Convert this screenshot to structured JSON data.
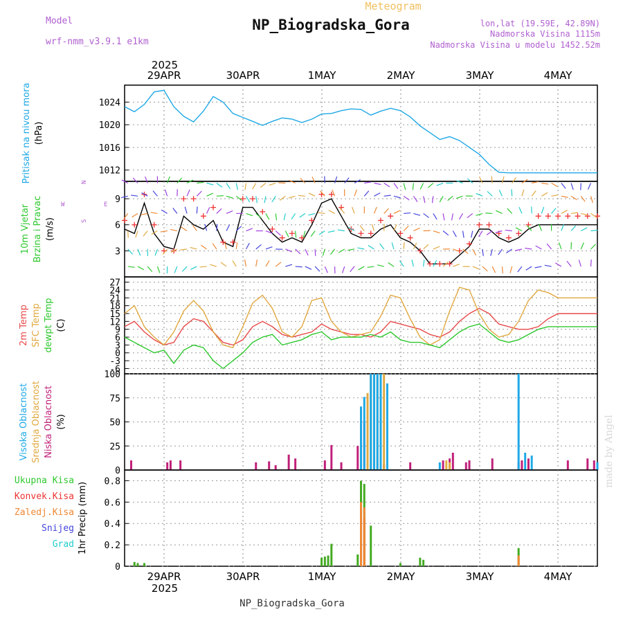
{
  "header": {
    "meteogram_label": "Meteogram",
    "station_title": "NP_Biogradska_Gora",
    "model_label": "Model",
    "model_name": "wrf-nmm_v3.9.1  e1km",
    "lonlat": "lon,lat (19.59E, 42.89N)",
    "elevation": "Nadmorska Visina 1115m",
    "model_elevation": "Nadmorska Visina u modelu 1452.52m"
  },
  "footer": {
    "station": "NP_Biogradska_Gora",
    "credit": "made by Angel"
  },
  "colors": {
    "pressure": "#1ea8e6",
    "t2m": "#e84a4a",
    "tsfc": "#e0a840",
    "dewpt": "#2ec82e",
    "high_cloud": "#1ea8e6",
    "mid_cloud": "#e0a840",
    "low_cloud": "#c0207a",
    "total_precip": "#44aa22",
    "conv_precip": "#ee3333",
    "frozen_precip": "#ee8833",
    "snow": "#4444dd",
    "graupel": "#22cccc",
    "wind_speed": "#000000",
    "gust": "#ee3333"
  },
  "chart_data": [
    {
      "type": "line",
      "panel": "pressure",
      "ylabel_parts": [
        "Pritisak na nivou mora",
        "(hPa)"
      ],
      "xlim": [
        0,
        144
      ],
      "ylim": [
        1010,
        1027
      ],
      "yticks": [
        1012,
        1016,
        1020,
        1024
      ],
      "grid": true,
      "top_tick_year": "2025",
      "top_tick_labels": [
        "29APR",
        "30APR",
        "1MAY",
        "2MAY",
        "3MAY",
        "4MAY"
      ],
      "series": [
        {
          "color": "#1ea8e6",
          "x": [
            0,
            3,
            6,
            9,
            12,
            15,
            18,
            21,
            24,
            27,
            30,
            33,
            36,
            39,
            42,
            45,
            48,
            51,
            54,
            57,
            60,
            63,
            66,
            69,
            72,
            75,
            78,
            81,
            84,
            87,
            90,
            93,
            96,
            99,
            102,
            105,
            108,
            111,
            114,
            117,
            120,
            123,
            126,
            129,
            132,
            135,
            138,
            141,
            144
          ],
          "y": [
            1023.2,
            1022.3,
            1023.6,
            1025.8,
            1026.1,
            1023.2,
            1021.5,
            1020.5,
            1022.4,
            1025.0,
            1024.0,
            1022.0,
            1021.3,
            1020.6,
            1019.9,
            1020.6,
            1021.2,
            1021.0,
            1020.4,
            1021.0,
            1021.9,
            1022.0,
            1022.5,
            1022.8,
            1022.7,
            1021.7,
            1022.4,
            1022.9,
            1022.5,
            1021.4,
            1019.8,
            1018.6,
            1017.4,
            1017.9,
            1017.2,
            1016.0,
            1014.8,
            1013.0,
            1011.6,
            1011.5,
            1011.5,
            1011.5,
            1011.5,
            1011.5,
            1011.5,
            1011.5,
            1011.5,
            1011.5,
            1011.5
          ]
        }
      ]
    },
    {
      "type": "line",
      "panel": "wind",
      "ylabel_parts": [
        "10m Vjetar",
        "Brzina i Pravac",
        "(m/s)"
      ],
      "compass_labels": [
        "W",
        "E",
        "N",
        "S"
      ],
      "xlim": [
        0,
        144
      ],
      "ylim": [
        0,
        11
      ],
      "yticks": [
        3,
        6,
        9
      ],
      "grid": true,
      "series": [
        {
          "name": "speed",
          "color": "#000000",
          "x": [
            0,
            3,
            6,
            9,
            12,
            15,
            18,
            21,
            24,
            27,
            30,
            33,
            36,
            39,
            42,
            45,
            48,
            51,
            54,
            57,
            60,
            63,
            66,
            69,
            72,
            75,
            78,
            81,
            84,
            87,
            90,
            93,
            96,
            99,
            102,
            105,
            108,
            111,
            114,
            117,
            120,
            123,
            126,
            129,
            132,
            135,
            138,
            141,
            144
          ],
          "y": [
            5.5,
            5.0,
            8.5,
            5.0,
            3.5,
            3.2,
            7.0,
            6.0,
            5.5,
            6.5,
            4.0,
            3.5,
            8.0,
            8.0,
            6.5,
            5.0,
            4.0,
            4.5,
            4.0,
            6.0,
            8.5,
            9.0,
            7.0,
            5.0,
            4.5,
            4.5,
            5.5,
            6.0,
            4.5,
            4.0,
            3.0,
            1.5,
            1.5,
            1.5,
            2.5,
            3.5,
            5.5,
            5.5,
            4.5,
            4.0,
            4.5,
            5.5,
            6.0,
            6.0,
            6.0,
            6.0,
            6.0,
            6.0,
            6.0
          ]
        },
        {
          "name": "gust",
          "color": "#ee3333",
          "x": [
            0,
            3,
            6,
            9,
            12,
            15,
            18,
            21,
            24,
            27,
            30,
            33,
            36,
            39,
            42,
            45,
            48,
            51,
            54,
            57,
            60,
            63,
            66,
            69,
            72,
            75,
            78,
            81,
            84,
            87,
            90,
            93,
            96,
            99,
            102,
            105,
            108,
            111,
            114,
            117,
            120,
            123,
            126,
            129,
            132,
            135,
            138,
            141,
            144
          ],
          "y": [
            6.5,
            6.0,
            9.5,
            6.0,
            3.0,
            3.0,
            9.0,
            9.0,
            7.0,
            8.0,
            4.0,
            4.0,
            9.0,
            9.0,
            7.5,
            5.5,
            4.5,
            5.0,
            4.5,
            6.5,
            9.5,
            9.5,
            8.0,
            5.5,
            5.0,
            5.0,
            6.5,
            7.0,
            5.0,
            4.5,
            3.0,
            1.5,
            1.5,
            1.5,
            3.0,
            3.8,
            6.0,
            6.0,
            5.0,
            4.5,
            5.0,
            6.0,
            7.0,
            7.0,
            7.0,
            7.0,
            7.0,
            7.0,
            7.0
          ]
        }
      ]
    },
    {
      "type": "line",
      "panel": "temperature",
      "ylabel_parts": [
        "2m Temp",
        "SFC Temp",
        "dewpt Temp",
        "(C)"
      ],
      "xlim": [
        0,
        144
      ],
      "ylim": [
        -8,
        29
      ],
      "yticks": [
        -6,
        -3,
        0,
        3,
        6,
        9,
        12,
        15,
        18,
        21,
        24,
        27
      ],
      "grid": true,
      "series": [
        {
          "name": "2m Temp",
          "color": "#e84a4a",
          "x": [
            0,
            3,
            6,
            9,
            12,
            15,
            18,
            21,
            24,
            27,
            30,
            33,
            36,
            39,
            42,
            45,
            48,
            51,
            54,
            57,
            60,
            63,
            66,
            69,
            72,
            75,
            78,
            81,
            84,
            87,
            90,
            93,
            96,
            99,
            102,
            105,
            108,
            111,
            114,
            117,
            120,
            123,
            126,
            129,
            132,
            135,
            138,
            141,
            144
          ],
          "y": [
            10,
            12,
            8,
            5,
            3,
            4,
            10,
            13,
            12,
            8,
            4,
            3,
            5,
            10,
            12,
            10,
            7,
            6,
            7,
            8,
            11,
            9,
            8,
            7,
            7,
            6,
            8,
            12,
            11,
            10,
            9,
            7,
            6,
            8,
            12,
            15,
            17,
            15,
            11,
            10,
            9,
            9,
            10,
            13,
            15,
            15,
            15,
            15,
            15
          ]
        },
        {
          "name": "SFC Temp",
          "color": "#e0a840",
          "x": [
            0,
            3,
            6,
            9,
            12,
            15,
            18,
            21,
            24,
            27,
            30,
            33,
            36,
            39,
            42,
            45,
            48,
            51,
            54,
            57,
            60,
            63,
            66,
            69,
            72,
            75,
            78,
            81,
            84,
            87,
            90,
            93,
            96,
            99,
            102,
            105,
            108,
            111,
            114,
            117,
            120,
            123,
            126,
            129,
            132,
            135,
            138,
            141,
            144
          ],
          "y": [
            15,
            18,
            10,
            6,
            3,
            8,
            16,
            20,
            16,
            8,
            3,
            2,
            10,
            19,
            22,
            17,
            8,
            6,
            10,
            20,
            21,
            12,
            8,
            6,
            7,
            8,
            14,
            22,
            21,
            13,
            6,
            3,
            5,
            16,
            25,
            24,
            15,
            9,
            6,
            7,
            12,
            20,
            24,
            23,
            21,
            21,
            21,
            21,
            21
          ]
        },
        {
          "name": "dewpt Temp",
          "color": "#2ec82e",
          "x": [
            0,
            3,
            6,
            9,
            12,
            15,
            18,
            21,
            24,
            27,
            30,
            33,
            36,
            39,
            42,
            45,
            48,
            51,
            54,
            57,
            60,
            63,
            66,
            69,
            72,
            75,
            78,
            81,
            84,
            87,
            90,
            93,
            96,
            99,
            102,
            105,
            108,
            111,
            114,
            117,
            120,
            123,
            126,
            129,
            132,
            135,
            138,
            141,
            144
          ],
          "y": [
            6,
            4,
            2,
            0,
            1,
            -4,
            1,
            3,
            2,
            -3,
            -6,
            -3,
            0,
            4,
            6,
            7,
            3,
            4,
            5,
            7,
            8,
            5,
            6,
            6,
            6,
            7,
            6,
            8,
            5,
            4,
            4,
            3,
            2,
            5,
            8,
            10,
            11,
            8,
            5,
            4,
            5,
            7,
            9,
            10,
            10,
            10,
            10,
            10,
            10
          ]
        }
      ]
    },
    {
      "type": "bar",
      "panel": "cloud",
      "ylabel_parts": [
        "Visoka Oblacnost",
        "Srednja Oblacnost",
        "Niska Oblacnost",
        "(%)"
      ],
      "xlim": [
        0,
        144
      ],
      "ylim": [
        0,
        100
      ],
      "yticks": [
        0,
        25,
        50,
        75,
        100
      ],
      "grid": true,
      "series": [
        {
          "name": "Niska Oblacnost",
          "color": "#c0207a",
          "x": [
            2,
            13,
            14,
            17,
            40,
            44,
            46,
            50,
            52,
            61,
            63,
            66,
            71,
            72,
            73,
            76,
            79,
            87,
            97,
            99,
            100,
            104,
            105,
            112,
            120,
            121,
            123,
            135,
            141,
            143
          ],
          "y": [
            10,
            8,
            10,
            10,
            8,
            9,
            5,
            16,
            12,
            10,
            26,
            8,
            25,
            30,
            50,
            8,
            6,
            8,
            10,
            12,
            18,
            8,
            10,
            12,
            8,
            10,
            12,
            10,
            12,
            10
          ]
        },
        {
          "name": "Srednja Oblacnost",
          "color": "#e0a840",
          "x": [
            74,
            75,
            76,
            77,
            78,
            79,
            98,
            99
          ],
          "y": [
            80,
            100,
            100,
            100,
            100,
            100,
            10,
            8
          ]
        },
        {
          "name": "Visoka Oblacnost",
          "color": "#1ea8e6",
          "x": [
            72,
            73,
            75,
            76,
            77,
            78,
            80,
            96,
            120,
            122,
            124,
            144
          ],
          "y": [
            66,
            76,
            100,
            100,
            100,
            100,
            90,
            8,
            100,
            18,
            15,
            8
          ]
        }
      ]
    },
    {
      "type": "bar",
      "panel": "precipitation",
      "ylabel_parts": [
        "Ukupna Kisa",
        "Konvek.Kisa",
        "Zaledj.Kisa",
        "Snijeg",
        "Grad",
        "1hr Precip (mm)"
      ],
      "xlim": [
        0,
        144
      ],
      "ylim": [
        0,
        0.9
      ],
      "yticks": [
        0,
        0.2,
        0.4,
        0.6,
        0.8
      ],
      "grid": true,
      "bottom_tick_labels": [
        "29APR",
        "30APR",
        "1MAY",
        "2MAY",
        "3MAY",
        "4MAY"
      ],
      "bottom_tick_year": "2025",
      "series": [
        {
          "name": "Ukupna Kisa",
          "color": "#44aa22",
          "x": [
            3,
            4,
            6,
            60,
            61,
            62,
            63,
            71,
            72,
            73,
            75,
            84,
            90,
            91,
            120
          ],
          "y": [
            0.04,
            0.03,
            0.03,
            0.08,
            0.09,
            0.1,
            0.21,
            0.11,
            0.8,
            0.77,
            0.38,
            0.03,
            0.08,
            0.06,
            0.17
          ]
        },
        {
          "name": "Konvek.Kisa",
          "color": "#ee3333",
          "x": [
            72,
            73
          ],
          "y": [
            0.4,
            0.45
          ]
        },
        {
          "name": "Zaledj.Kisa",
          "color": "#ee8833",
          "x": [
            72,
            73,
            120
          ],
          "y": [
            0.6,
            0.55,
            0.1
          ]
        }
      ]
    }
  ]
}
